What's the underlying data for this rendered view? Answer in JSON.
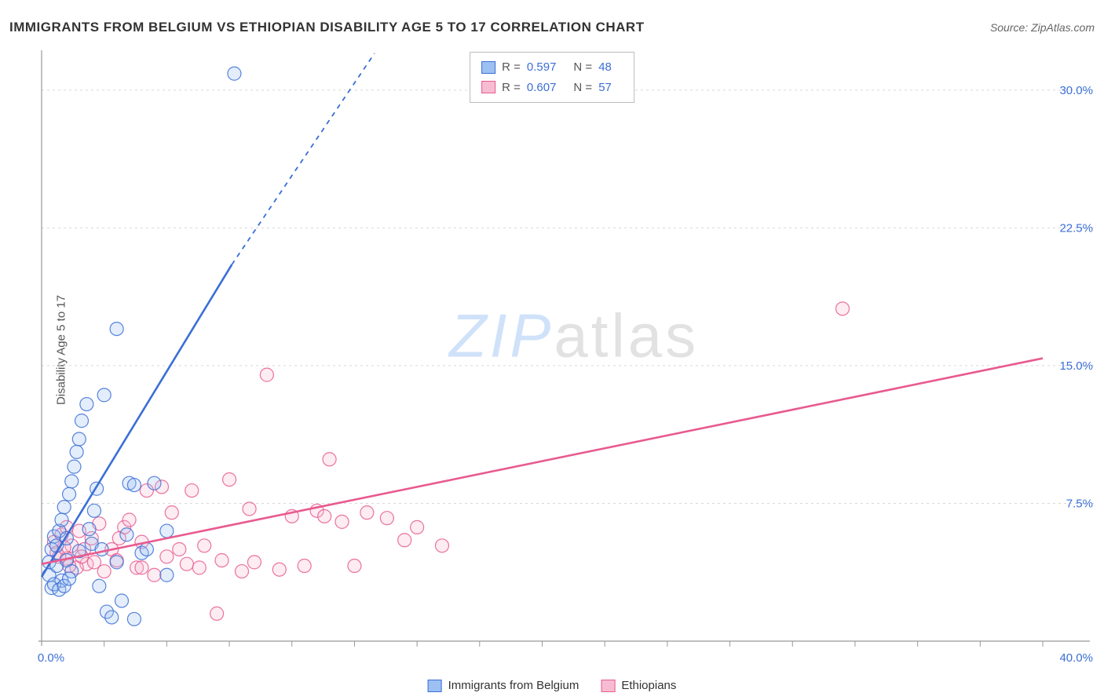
{
  "title": "IMMIGRANTS FROM BELGIUM VS ETHIOPIAN DISABILITY AGE 5 TO 17 CORRELATION CHART",
  "source_label": "Source: ZipAtlas.com",
  "ylabel": "Disability Age 5 to 17",
  "watermark": {
    "part1": "ZIP",
    "part2": "atlas"
  },
  "chart": {
    "type": "scatter",
    "background_color": "#ffffff",
    "grid_color": "#d9d9d9",
    "axis_color": "#999999",
    "tick_label_color": "#3b6fd6",
    "tick_label_fontsize": 15,
    "xlim": [
      0,
      40
    ],
    "ylim": [
      0,
      32
    ],
    "x_tick_label": "0.0%",
    "x_tick_last": "40.0%",
    "y_ticks": [
      7.5,
      15.0,
      22.5,
      30.0
    ],
    "y_tick_labels": [
      "7.5%",
      "15.0%",
      "22.5%",
      "30.0%"
    ],
    "x_minor_step": 2.5,
    "y_minor_tick": false,
    "marker_radius": 8.5,
    "marker_stroke_width": 1.2,
    "marker_fill_opacity": 0.28,
    "line_width": 2.6,
    "dash_pattern": "6,6"
  },
  "series": [
    {
      "key": "belgium",
      "label": "Immigrants from Belgium",
      "color_stroke": "#3b6fd6",
      "color_fill": "#9cc0f2",
      "stats": {
        "R": "0.597",
        "N": "48"
      },
      "trendline": {
        "x1": 0,
        "y1": 3.5,
        "x2_solid": 7.6,
        "y2_solid": 20.5,
        "x2_dash": 13.3,
        "y2_dash": 32.0
      },
      "points": [
        [
          0.3,
          3.6
        ],
        [
          0.3,
          4.3
        ],
        [
          0.4,
          5.0
        ],
        [
          0.5,
          5.7
        ],
        [
          0.6,
          4.1
        ],
        [
          0.6,
          5.2
        ],
        [
          0.7,
          6.0
        ],
        [
          0.8,
          3.3
        ],
        [
          0.8,
          6.6
        ],
        [
          0.9,
          7.3
        ],
        [
          1.0,
          4.4
        ],
        [
          1.0,
          5.6
        ],
        [
          1.1,
          8.0
        ],
        [
          1.2,
          3.8
        ],
        [
          1.2,
          8.7
        ],
        [
          1.3,
          9.5
        ],
        [
          1.4,
          10.3
        ],
        [
          1.5,
          11.0
        ],
        [
          1.5,
          4.9
        ],
        [
          1.6,
          12.0
        ],
        [
          1.8,
          12.9
        ],
        [
          2.0,
          5.3
        ],
        [
          2.2,
          8.3
        ],
        [
          2.3,
          3.0
        ],
        [
          2.5,
          13.4
        ],
        [
          2.6,
          1.6
        ],
        [
          2.8,
          1.3
        ],
        [
          3.0,
          4.3
        ],
        [
          3.0,
          17.0
        ],
        [
          3.2,
          2.2
        ],
        [
          3.4,
          5.8
        ],
        [
          3.5,
          8.6
        ],
        [
          3.7,
          1.2
        ],
        [
          3.7,
          8.5
        ],
        [
          4.0,
          4.8
        ],
        [
          4.2,
          5.0
        ],
        [
          4.5,
          8.6
        ],
        [
          5.0,
          6.0
        ],
        [
          5.0,
          3.6
        ],
        [
          1.9,
          6.1
        ],
        [
          2.1,
          7.1
        ],
        [
          0.4,
          2.9
        ],
        [
          0.5,
          3.1
        ],
        [
          0.7,
          2.8
        ],
        [
          0.9,
          3.0
        ],
        [
          1.1,
          3.4
        ],
        [
          7.7,
          30.9
        ],
        [
          2.4,
          5.0
        ]
      ]
    },
    {
      "key": "ethiopians",
      "label": "Ethiopians",
      "color_stroke": "#e85a8f",
      "color_fill": "#f7bcd2",
      "stats": {
        "R": "0.607",
        "N": "57"
      },
      "trendline": {
        "x1": 0,
        "y1": 4.2,
        "x2_solid": 40,
        "y2_solid": 15.4,
        "x2_dash": 40,
        "y2_dash": 15.4
      },
      "points": [
        [
          0.5,
          5.4
        ],
        [
          0.6,
          4.8
        ],
        [
          0.8,
          5.8
        ],
        [
          1.0,
          4.5
        ],
        [
          1.2,
          5.2
        ],
        [
          1.5,
          6.0
        ],
        [
          1.8,
          4.2
        ],
        [
          2.0,
          5.6
        ],
        [
          2.3,
          6.4
        ],
        [
          2.5,
          3.8
        ],
        [
          2.8,
          5.0
        ],
        [
          3.0,
          4.4
        ],
        [
          3.3,
          6.2
        ],
        [
          3.5,
          6.6
        ],
        [
          3.8,
          4.0
        ],
        [
          4.0,
          5.4
        ],
        [
          4.2,
          8.2
        ],
        [
          4.5,
          3.6
        ],
        [
          4.8,
          8.4
        ],
        [
          5.0,
          4.6
        ],
        [
          5.2,
          7.0
        ],
        [
          5.5,
          5.0
        ],
        [
          5.8,
          4.2
        ],
        [
          6.0,
          8.2
        ],
        [
          6.3,
          4.0
        ],
        [
          6.5,
          5.2
        ],
        [
          7.0,
          1.5
        ],
        [
          7.2,
          4.4
        ],
        [
          7.5,
          8.8
        ],
        [
          8.0,
          3.8
        ],
        [
          8.3,
          7.2
        ],
        [
          8.5,
          4.3
        ],
        [
          9.0,
          14.5
        ],
        [
          9.5,
          3.9
        ],
        [
          10.0,
          6.8
        ],
        [
          10.5,
          4.1
        ],
        [
          11.0,
          7.1
        ],
        [
          11.3,
          6.8
        ],
        [
          11.5,
          9.9
        ],
        [
          12.0,
          6.5
        ],
        [
          12.5,
          4.1
        ],
        [
          13.0,
          7.0
        ],
        [
          13.8,
          6.7
        ],
        [
          14.5,
          5.5
        ],
        [
          15.0,
          6.2
        ],
        [
          16.0,
          5.2
        ],
        [
          32.0,
          18.1
        ],
        [
          1.0,
          6.2
        ],
        [
          1.4,
          4.0
        ],
        [
          1.7,
          5.0
        ],
        [
          2.1,
          4.3
        ],
        [
          0.7,
          4.6
        ],
        [
          0.9,
          5.1
        ],
        [
          1.1,
          4.1
        ],
        [
          1.6,
          4.6
        ],
        [
          3.1,
          5.6
        ],
        [
          4.0,
          4.0
        ]
      ]
    }
  ],
  "legend_top": {
    "r_label": "R =",
    "n_label": "N ="
  }
}
